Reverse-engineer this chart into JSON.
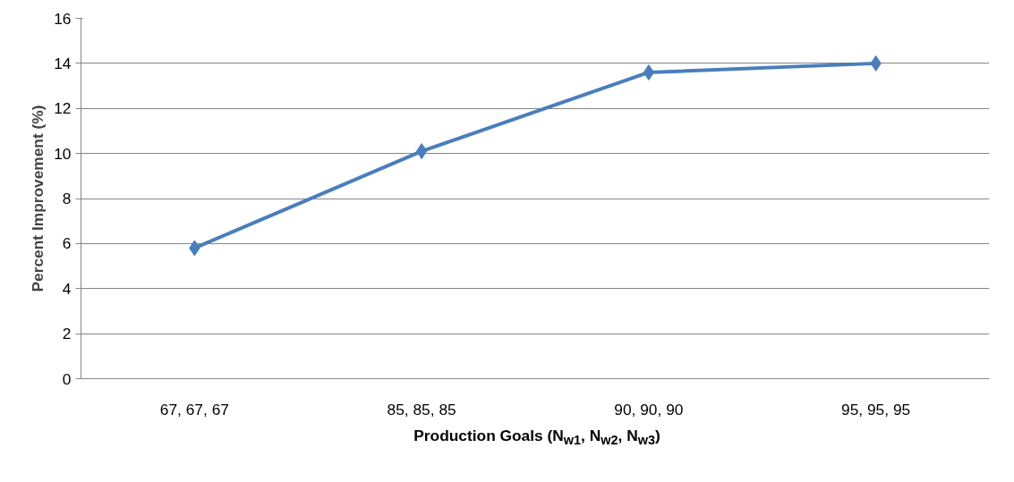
{
  "chart_data": {
    "type": "line",
    "ylabel": "Percent Improvement (%)",
    "xlabel": "Production Goals (N$_{w1}$, N$_{w2}$, N$_{w3}$)",
    "categories": [
      "67, 67, 67",
      "85, 85, 85",
      "90, 90, 90",
      "95, 95, 95"
    ],
    "series": [
      {
        "color": "#4a7ebb",
        "values": [
          5.8,
          10.1,
          13.6,
          14.0
        ]
      }
    ],
    "ylim": [
      0,
      16
    ],
    "yticks": [
      0,
      2,
      4,
      6,
      8,
      10,
      12,
      14,
      16
    ],
    "grid": "y",
    "marker": "diamond",
    "line_style": "solid"
  }
}
